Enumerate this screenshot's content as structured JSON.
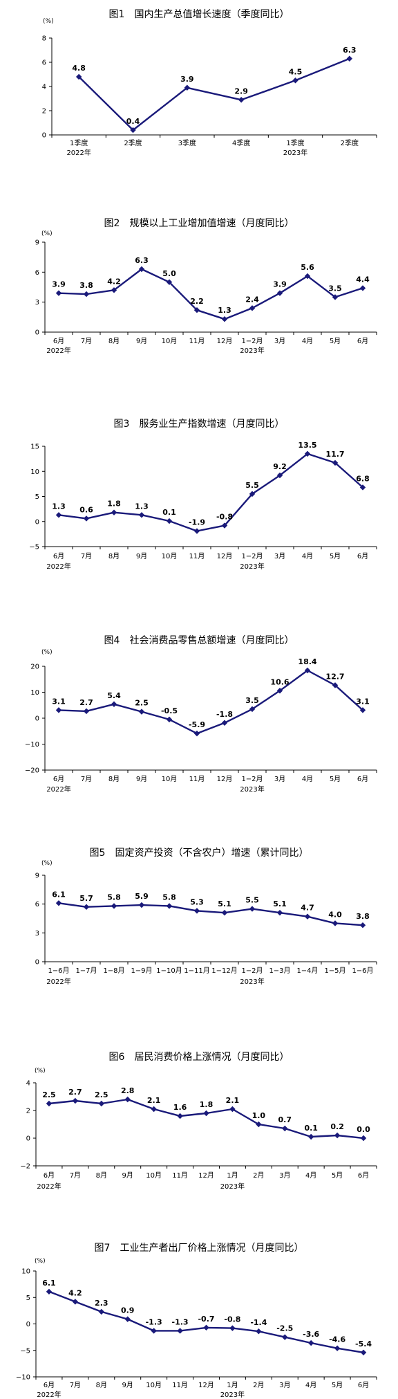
{
  "colors": {
    "series": "#1a1a7a",
    "axis": "#000000"
  },
  "chart_data": [
    {
      "type": "line",
      "title": "图1　国内生产总值增长速度（季度同比）",
      "unit": "(%)",
      "ylim": [
        0,
        8
      ],
      "yticks": [
        "0",
        "2",
        "4",
        "6",
        "8"
      ],
      "categories": [
        "1季度",
        "2季度",
        "3季度",
        "4季度",
        "1季度",
        "2季度"
      ],
      "year_labels": [
        "2022年",
        "",
        "",
        "",
        "2023年",
        ""
      ],
      "values": [
        4.8,
        0.4,
        3.9,
        2.9,
        4.5,
        6.3
      ],
      "labels": [
        "4.8",
        "0.4",
        "3.9",
        "2.9",
        "4.5",
        "6.3"
      ]
    },
    {
      "type": "line",
      "title": "图2　规模以上工业增加值增速（月度同比）",
      "unit": "(%)",
      "ylim": [
        0,
        9
      ],
      "yticks": [
        "0",
        "3",
        "6",
        "9"
      ],
      "categories": [
        "6月",
        "7月",
        "8月",
        "9月",
        "10月",
        "11月",
        "12月",
        "1−2月",
        "3月",
        "4月",
        "5月",
        "6月"
      ],
      "year_labels": [
        "2022年",
        "",
        "",
        "",
        "",
        "",
        "",
        "2023年",
        "",
        "",
        "",
        ""
      ],
      "values": [
        3.9,
        3.8,
        4.2,
        6.3,
        5.0,
        2.2,
        1.3,
        2.4,
        3.9,
        5.6,
        3.5,
        4.4
      ],
      "labels": [
        "3.9",
        "3.8",
        "4.2",
        "6.3",
        "5.0",
        "2.2",
        "1.3",
        "2.4",
        "3.9",
        "5.6",
        "3.5",
        "4.4"
      ]
    },
    {
      "type": "line",
      "title": "图3　服务业生产指数增速（月度同比）",
      "unit": "",
      "ylim": [
        -5,
        15
      ],
      "yticks": [
        "−5",
        "0",
        "5",
        "10",
        "15"
      ],
      "categories": [
        "6月",
        "7月",
        "8月",
        "9月",
        "10月",
        "11月",
        "12月",
        "1−2月",
        "3月",
        "4月",
        "5月",
        "6月"
      ],
      "year_labels": [
        "2022年",
        "",
        "",
        "",
        "",
        "",
        "",
        "2023年",
        "",
        "",
        "",
        ""
      ],
      "values": [
        1.3,
        0.6,
        1.8,
        1.3,
        0.1,
        -1.9,
        -0.8,
        5.5,
        9.2,
        13.5,
        11.7,
        6.8
      ],
      "labels": [
        "1.3",
        "0.6",
        "1.8",
        "1.3",
        "0.1",
        "-1.9",
        "-0.8",
        "5.5",
        "9.2",
        "13.5",
        "11.7",
        "6.8"
      ]
    },
    {
      "type": "line",
      "title": "图4　社会消费品零售总额增速（月度同比）",
      "unit": "(%)",
      "ylim": [
        -20,
        20
      ],
      "yticks": [
        "−20",
        "−10",
        "0",
        "10",
        "20"
      ],
      "categories": [
        "6月",
        "7月",
        "8月",
        "9月",
        "10月",
        "11月",
        "12月",
        "1−2月",
        "3月",
        "4月",
        "5月",
        "6月"
      ],
      "year_labels": [
        "2022年",
        "",
        "",
        "",
        "",
        "",
        "",
        "2023年",
        "",
        "",
        "",
        ""
      ],
      "values": [
        3.1,
        2.7,
        5.4,
        2.5,
        -0.5,
        -5.9,
        -1.8,
        3.5,
        10.6,
        18.4,
        12.7,
        3.1
      ],
      "labels": [
        "3.1",
        "2.7",
        "5.4",
        "2.5",
        "-0.5",
        "-5.9",
        "-1.8",
        "3.5",
        "10.6",
        "18.4",
        "12.7",
        "3.1"
      ]
    },
    {
      "type": "line",
      "title": "图5　固定资产投资（不含农户）增速（累计同比）",
      "unit": "(%)",
      "ylim": [
        0,
        9
      ],
      "yticks": [
        "0",
        "3",
        "6",
        "9"
      ],
      "categories": [
        "1−6月",
        "1−7月",
        "1−8月",
        "1−9月",
        "1−10月",
        "1−11月",
        "1−12月",
        "1−2月",
        "1−3月",
        "1−4月",
        "1−5月",
        "1−6月"
      ],
      "year_labels": [
        "2022年",
        "",
        "",
        "",
        "",
        "",
        "",
        "2023年",
        "",
        "",
        "",
        ""
      ],
      "values": [
        6.1,
        5.7,
        5.8,
        5.9,
        5.8,
        5.3,
        5.1,
        5.5,
        5.1,
        4.7,
        4.0,
        3.8
      ],
      "labels": [
        "6.1",
        "5.7",
        "5.8",
        "5.9",
        "5.8",
        "5.3",
        "5.1",
        "5.5",
        "5.1",
        "4.7",
        "4.0",
        "3.8"
      ]
    },
    {
      "type": "line",
      "title": "图6　居民消费价格上涨情况（月度同比）",
      "unit": "(%)",
      "ylim": [
        -2,
        4
      ],
      "yticks": [
        "−2",
        "0",
        "2",
        "4"
      ],
      "categories": [
        "6月",
        "7月",
        "8月",
        "9月",
        "10月",
        "11月",
        "12月",
        "1月",
        "2月",
        "3月",
        "4月",
        "5月",
        "6月"
      ],
      "year_labels": [
        "2022年",
        "",
        "",
        "",
        "",
        "",
        "",
        "2023年",
        "",
        "",
        "",
        "",
        ""
      ],
      "values": [
        2.5,
        2.7,
        2.5,
        2.8,
        2.1,
        1.6,
        1.8,
        2.1,
        1.0,
        0.7,
        0.1,
        0.2,
        0.0
      ],
      "labels": [
        "2.5",
        "2.7",
        "2.5",
        "2.8",
        "2.1",
        "1.6",
        "1.8",
        "2.1",
        "1.0",
        "0.7",
        "0.1",
        "0.2",
        "0.0"
      ]
    },
    {
      "type": "line",
      "title": "图7　工业生产者出厂价格上涨情况（月度同比）",
      "unit": "(%)",
      "ylim": [
        -10,
        10
      ],
      "yticks": [
        "−10",
        "−5",
        "0",
        "5",
        "10"
      ],
      "categories": [
        "6月",
        "7月",
        "8月",
        "9月",
        "10月",
        "11月",
        "12月",
        "1月",
        "2月",
        "3月",
        "4月",
        "5月",
        "6月"
      ],
      "year_labels": [
        "2022年",
        "",
        "",
        "",
        "",
        "",
        "",
        "2023年",
        "",
        "",
        "",
        "",
        ""
      ],
      "values": [
        6.1,
        4.2,
        2.3,
        0.9,
        -1.3,
        -1.3,
        -0.7,
        -0.8,
        -1.4,
        -2.5,
        -3.6,
        -4.6,
        -5.4
      ],
      "labels": [
        "6.1",
        "4.2",
        "2.3",
        "0.9",
        "-1.3",
        "-1.3",
        "-0.7",
        "-0.8",
        "-1.4",
        "-2.5",
        "-3.6",
        "-4.6",
        "-5.4"
      ]
    }
  ]
}
